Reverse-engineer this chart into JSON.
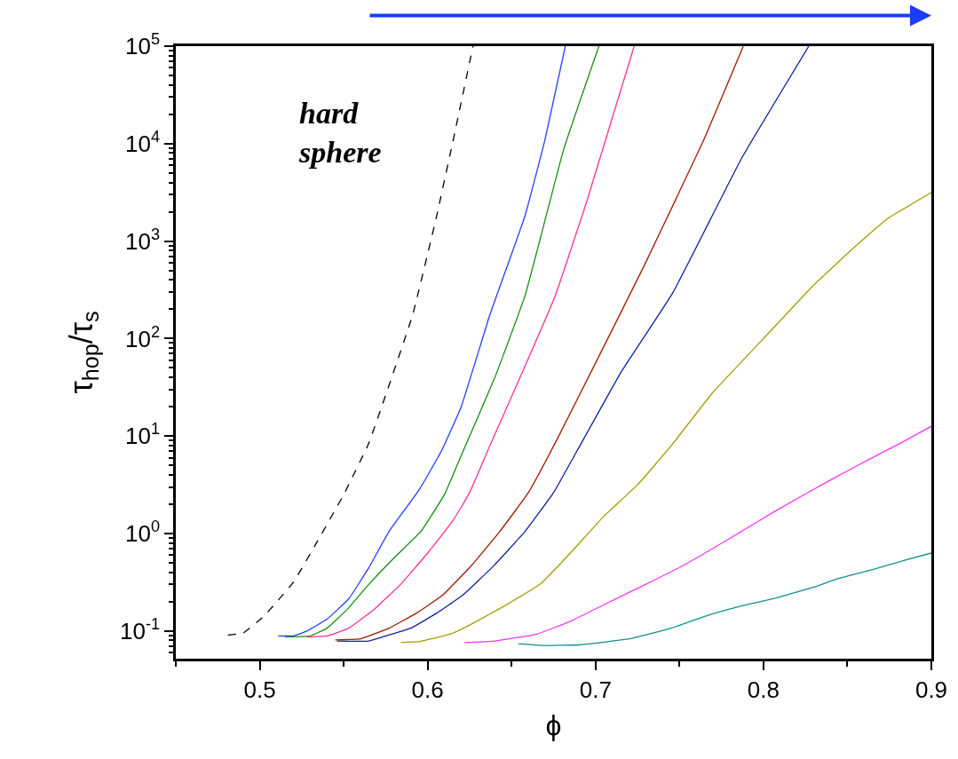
{
  "chart_data": {
    "type": "line",
    "xlabel": "ϕ",
    "ylabel": "τ$_{hop}$/τ$_{s}$",
    "annotations": [
      "hard\nsphere"
    ],
    "xlim": [
      0.45,
      0.9
    ],
    "xticks": [
      0.5,
      0.6,
      0.7,
      0.8,
      0.9
    ],
    "ylim": [
      0.052,
      100000
    ],
    "log": "y",
    "yticks": [
      {
        "value": 0.1,
        "label": "10$^{-1}$"
      },
      {
        "value": 1,
        "label": "10$^{0}$"
      },
      {
        "value": 10,
        "label": "10$^{1}$"
      },
      {
        "value": 100,
        "label": "10$^{2}$"
      },
      {
        "value": 1000,
        "label": "10$^{3}$"
      },
      {
        "value": 10000,
        "label": "10$^{4}$"
      },
      {
        "value": 100000,
        "label": "10$^{5}$"
      }
    ],
    "marker": "none",
    "series": [
      {
        "color": "#000000",
        "line_style": "dashed",
        "x": [
          0.481,
          0.49,
          0.503,
          0.52,
          0.534,
          0.55,
          0.565,
          0.591,
          0.605,
          0.616,
          0.627
        ],
        "values": [
          0.091,
          0.095,
          0.145,
          0.316,
          0.813,
          2.51,
          8.51,
          174,
          1700,
          12600,
          100000
        ]
      },
      {
        "color": "#2040ff",
        "line_style": "solid",
        "x": [
          0.511,
          0.52,
          0.528,
          0.54,
          0.553,
          0.565,
          0.577,
          0.595,
          0.608,
          0.62,
          0.637,
          0.658,
          0.67,
          0.682
        ],
        "values": [
          0.089,
          0.089,
          0.1,
          0.132,
          0.214,
          0.447,
          1.05,
          2.82,
          6.92,
          20,
          174,
          1820,
          11200,
          100000
        ]
      },
      {
        "color": "#109010",
        "line_style": "solid",
        "x": [
          0.515,
          0.53,
          0.54,
          0.552,
          0.565,
          0.58,
          0.596,
          0.61,
          0.621,
          0.64,
          0.658,
          0.681,
          0.702
        ],
        "values": [
          0.087,
          0.089,
          0.107,
          0.166,
          0.302,
          0.562,
          1.05,
          2.51,
          6.92,
          39.8,
          275,
          8710,
          100000
        ]
      },
      {
        "color": "#ff3090",
        "line_style": "solid",
        "x": [
          0.528,
          0.54,
          0.553,
          0.568,
          0.584,
          0.6,
          0.615,
          0.625,
          0.637,
          0.655,
          0.676,
          0.695,
          0.723
        ],
        "values": [
          0.087,
          0.089,
          0.107,
          0.166,
          0.302,
          0.631,
          1.35,
          2.63,
          7.94,
          39.8,
          275,
          2630,
          100000
        ]
      },
      {
        "color": "#a01800",
        "line_style": "solid",
        "x": [
          0.545,
          0.56,
          0.577,
          0.593,
          0.609,
          0.626,
          0.643,
          0.66,
          0.676,
          0.7,
          0.729,
          0.764,
          0.788
        ],
        "values": [
          0.081,
          0.083,
          0.107,
          0.151,
          0.234,
          0.468,
          1.05,
          2.63,
          8.51,
          56.2,
          562,
          10500,
          100000
        ]
      },
      {
        "color": "#1020a0",
        "line_style": "solid",
        "x": [
          0.546,
          0.565,
          0.575,
          0.59,
          0.605,
          0.621,
          0.64,
          0.658,
          0.675,
          0.69,
          0.715,
          0.746,
          0.787,
          0.827
        ],
        "values": [
          0.079,
          0.079,
          0.089,
          0.107,
          0.151,
          0.234,
          0.479,
          1.05,
          2.63,
          7.59,
          44.7,
          295,
          7080,
          100000
        ]
      },
      {
        "color": "#a0a000",
        "line_style": "solid",
        "x": [
          0.584,
          0.595,
          0.602,
          0.615,
          0.627,
          0.645,
          0.667,
          0.685,
          0.705,
          0.725,
          0.745,
          0.77,
          0.8,
          0.83,
          0.855,
          0.874,
          0.9
        ],
        "values": [
          0.076,
          0.078,
          0.083,
          0.095,
          0.12,
          0.178,
          0.302,
          0.631,
          1.51,
          3.16,
          7.94,
          28.2,
          100,
          355,
          891,
          1700,
          3160
        ]
      },
      {
        "color": "#ff30ff",
        "line_style": "solid",
        "x": [
          0.622,
          0.64,
          0.665,
          0.685,
          0.705,
          0.73,
          0.752,
          0.78,
          0.808,
          0.84,
          0.865,
          0.882,
          0.9
        ],
        "values": [
          0.076,
          0.079,
          0.093,
          0.126,
          0.186,
          0.302,
          0.468,
          0.891,
          1.74,
          3.55,
          6.03,
          8.51,
          12.6
        ]
      },
      {
        "color": "#109090",
        "line_style": "solid",
        "x": [
          0.654,
          0.669,
          0.69,
          0.72,
          0.745,
          0.767,
          0.79,
          0.808,
          0.83,
          0.845,
          0.865,
          0.885,
          0.9
        ],
        "values": [
          0.074,
          0.071,
          0.072,
          0.083,
          0.107,
          0.145,
          0.186,
          0.219,
          0.282,
          0.347,
          0.427,
          0.537,
          0.631
        ]
      }
    ]
  }
}
